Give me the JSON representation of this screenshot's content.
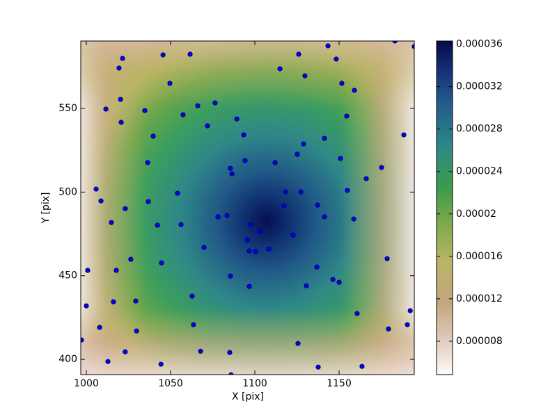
{
  "chart_data": {
    "type": "scatter",
    "xlabel": "X [pix]",
    "ylabel": "Y [pix]",
    "color": "#0000ff",
    "x": [
      997.1,
      1000.0,
      1000.8,
      1005.8,
      1008.7,
      1007.9,
      1011.6,
      1012.8,
      1014.9,
      1016.1,
      1017.8,
      1019.4,
      1020.3,
      1020.7,
      1021.5,
      1023.1,
      1023.1,
      1026.4,
      1029.3,
      1029.8,
      1034.7,
      1036.4,
      1036.8,
      1039.7,
      1042.2,
      1044.3,
      1044.6,
      1045.5,
      1049.6,
      1054.1,
      1056.2,
      1057.4,
      1061.6,
      1062.8,
      1063.6,
      1066.1,
      1067.8,
      1069.8,
      1071.9,
      1076.4,
      1078.1,
      1083.5,
      1085.5,
      1085.5,
      1086.4,
      1085.1,
      1085.9,
      1089.3,
      1093.4,
      1094.2,
      1095.5,
      1096.7,
      1097.5,
      1096.7,
      1100.4,
      1102.9,
      1108.3,
      1112.0,
      1114.9,
      1118.2,
      1117.4,
      1122.7,
      1125.2,
      1125.6,
      1127.3,
      1128.9,
      1129.7,
      1126.0,
      1130.6,
      1137.6,
      1136.8,
      1137.2,
      1141.3,
      1141.3,
      1143.4,
      1146.3,
      1148.3,
      1150.0,
      1150.8,
      1151.6,
      1154.5,
      1154.9,
      1158.7,
      1159.1,
      1160.7,
      1163.6,
      1166.1,
      1175.2,
      1178.5,
      1179.3,
      1183.1,
      1188.4,
      1190.5,
      1192.2,
      1194.6
    ],
    "y": [
      411.6,
      432.0,
      453.2,
      501.8,
      494.7,
      419.1,
      549.6,
      398.7,
      481.8,
      434.4,
      453.2,
      574.1,
      555.4,
      541.7,
      579.9,
      490.1,
      404.5,
      459.8,
      434.9,
      417.0,
      548.7,
      517.6,
      494.3,
      533.4,
      480.2,
      397.1,
      457.7,
      582.0,
      565.0,
      499.3,
      480.6,
      546.2,
      582.4,
      437.8,
      420.7,
      551.6,
      404.9,
      466.9,
      539.6,
      553.3,
      485.2,
      486.0,
      449.8,
      514.2,
      510.9,
      404.1,
      390.8,
      543.7,
      534.2,
      518.8,
      471.4,
      464.8,
      480.6,
      443.6,
      464.4,
      476.4,
      466.0,
      517.6,
      573.7,
      500.1,
      491.8,
      474.3,
      522.6,
      409.5,
      500.1,
      528.8,
      569.5,
      582.4,
      444.0,
      395.4,
      455.2,
      492.2,
      532.1,
      485.2,
      587.4,
      447.7,
      579.5,
      446.1,
      520.1,
      565.0,
      545.4,
      501.0,
      483.9,
      560.8,
      427.4,
      395.8,
      508.0,
      514.7,
      460.2,
      418.2,
      590.3,
      534.2,
      420.7,
      429.1,
      587.0
    ],
    "xlim": [
      996.7,
      1194.6
    ],
    "ylim": [
      390.9,
      590.3
    ],
    "xticks": [
      1000,
      1050,
      1100,
      1150
    ],
    "yticks": [
      400,
      450,
      500,
      550
    ],
    "colorbar": {
      "lim": [
        4.85e-06,
        3.63e-05
      ],
      "ticks": [
        8e-06,
        1.2e-05,
        1.6e-05,
        2e-05,
        2.4e-05,
        2.8e-05,
        3.2e-05,
        3.6e-05
      ]
    }
  }
}
